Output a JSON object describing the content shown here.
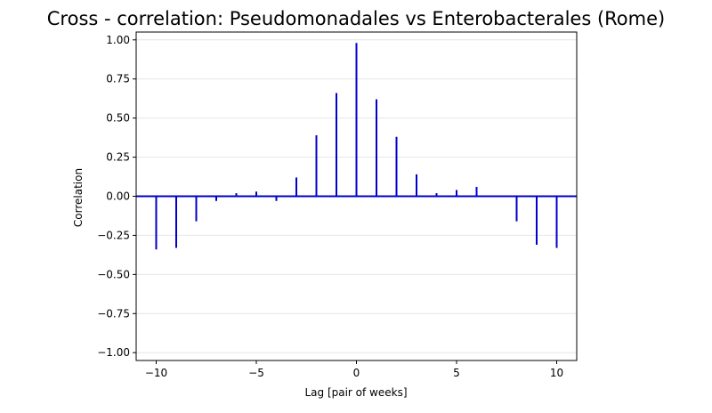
{
  "chart_data": {
    "type": "bar",
    "subtype": "stem",
    "title": "Cross - correlation: Pseudomonadales vs Enterobacterales (Rome)",
    "xlabel": "Lag [pair of weeks]",
    "ylabel": "Correlation",
    "xlim": [
      -11,
      11
    ],
    "ylim": [
      -1.05,
      1.05
    ],
    "xticks": [
      -10,
      -5,
      0,
      5,
      10
    ],
    "xtick_labels": [
      "−10",
      "−5",
      "0",
      "5",
      "10"
    ],
    "yticks": [
      -1.0,
      -0.75,
      -0.5,
      -0.25,
      0.0,
      0.25,
      0.5,
      0.75,
      1.0
    ],
    "ytick_labels": [
      "−1.00",
      "−0.75",
      "−0.50",
      "−0.25",
      "0.00",
      "0.25",
      "0.50",
      "0.75",
      "1.00"
    ],
    "grid": "horizontal",
    "baseline": 0,
    "color": "#0000cc",
    "x": [
      -10,
      -9,
      -8,
      -7,
      -6,
      -5,
      -4,
      -3,
      -2,
      -1,
      0,
      1,
      2,
      3,
      4,
      5,
      6,
      7,
      8,
      9,
      10
    ],
    "values": [
      -0.34,
      -0.33,
      -0.16,
      -0.03,
      0.02,
      0.03,
      -0.03,
      0.12,
      0.39,
      0.66,
      0.98,
      0.62,
      0.38,
      0.14,
      0.02,
      0.04,
      0.06,
      0.0,
      -0.16,
      -0.31,
      -0.33
    ]
  }
}
